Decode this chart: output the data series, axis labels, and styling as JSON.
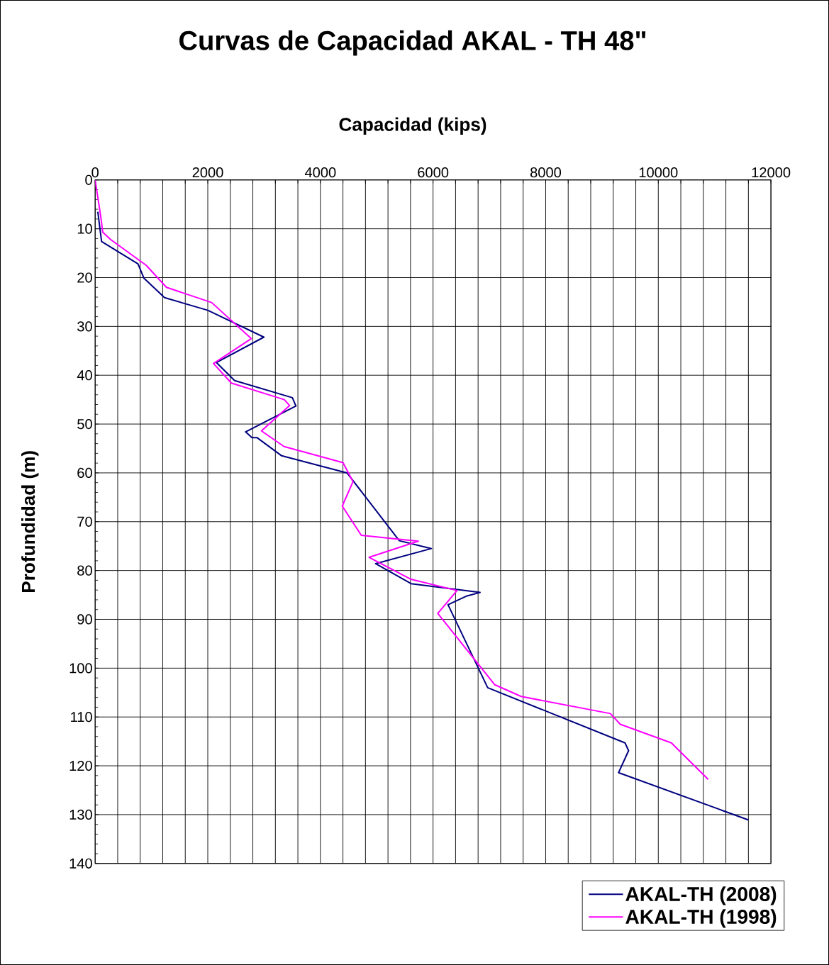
{
  "chart_data": {
    "type": "line",
    "title": "Curvas de Capacidad  AKAL - TH  48\"",
    "xlabel": "Capacidad (kips)",
    "ylabel": "Profundidad (m)",
    "xlim": [
      0,
      12000
    ],
    "ylim": [
      140,
      0
    ],
    "xticks": [
      0,
      {
        "value": 400,
        "label": null
      },
      {
        "value": 800,
        "label": null
      },
      {
        "value": 1200,
        "label": null
      },
      {
        "value": 1600,
        "label": null
      },
      2000,
      {
        "value": 2400,
        "label": null
      },
      {
        "value": 2800,
        "label": null
      },
      {
        "value": 3200,
        "label": null
      },
      {
        "value": 3600,
        "label": null
      },
      4000,
      {
        "value": 4400,
        "label": null
      },
      {
        "value": 4800,
        "label": null
      },
      {
        "value": 5200,
        "label": null
      },
      {
        "value": 5600,
        "label": null
      },
      6000,
      {
        "value": 6400,
        "label": null
      },
      {
        "value": 6800,
        "label": null
      },
      {
        "value": 7200,
        "label": null
      },
      {
        "value": 7600,
        "label": null
      },
      8000,
      {
        "value": 8400,
        "label": null
      },
      {
        "value": 8800,
        "label": null
      },
      {
        "value": 9200,
        "label": null
      },
      {
        "value": 9600,
        "label": null
      },
      10000,
      {
        "value": 10400,
        "label": null
      },
      {
        "value": 10800,
        "label": null
      },
      {
        "value": 11200,
        "label": null
      },
      {
        "value": 11600,
        "label": null
      },
      12000
    ],
    "yticks": [
      0,
      10,
      20,
      30,
      40,
      50,
      60,
      70,
      80,
      90,
      100,
      110,
      120,
      130,
      140
    ],
    "grid": true,
    "legend": "bottom right",
    "marker": "none",
    "line_style": "solid",
    "series": [
      {
        "name": "AKAL-TH (2008)",
        "color": "#000080",
        "x": [
          47,
          114,
          760,
          865,
          1232,
          2000,
          2996,
          2152,
          2477,
          3502,
          3565,
          2671,
          2785,
          2877,
          3312,
          4472,
          5401,
          5970,
          4979,
          5611,
          6835,
          6603,
          6266,
          6970,
          9409,
          9472,
          9295,
          11603
        ],
        "values": [
          6.5,
          12.6,
          17.2,
          20.1,
          24.1,
          26.7,
          32.2,
          37.4,
          41.1,
          44.6,
          46.3,
          51.6,
          52.8,
          52.8,
          56.5,
          60.0,
          73.9,
          75.5,
          78.6,
          82.7,
          84.5,
          85.2,
          87.0,
          104.0,
          115.3,
          116.9,
          121.4,
          131.1
        ]
      },
      {
        "name": "AKAL-TH (1998)",
        "color": "#ff00ff",
        "x": [
          0,
          97,
          135,
          274,
          907,
          1266,
          2067,
          2772,
          2101,
          2418,
          3358,
          3452,
          2953,
          3354,
          4401,
          4578,
          4388,
          4726,
          5738,
          4865,
          5611,
          6426,
          6084,
          7097,
          7565,
          9148,
          9325,
          10232,
          10886
        ],
        "values": [
          0,
          7.3,
          10.7,
          12.2,
          17.5,
          22.0,
          25.1,
          32.5,
          37.6,
          41.6,
          45.0,
          46.2,
          51.4,
          54.6,
          57.9,
          61.8,
          66.8,
          72.8,
          74.0,
          77.3,
          81.8,
          84.1,
          88.8,
          103.4,
          105.8,
          109.3,
          111.5,
          115.3,
          122.8
        ]
      }
    ]
  }
}
